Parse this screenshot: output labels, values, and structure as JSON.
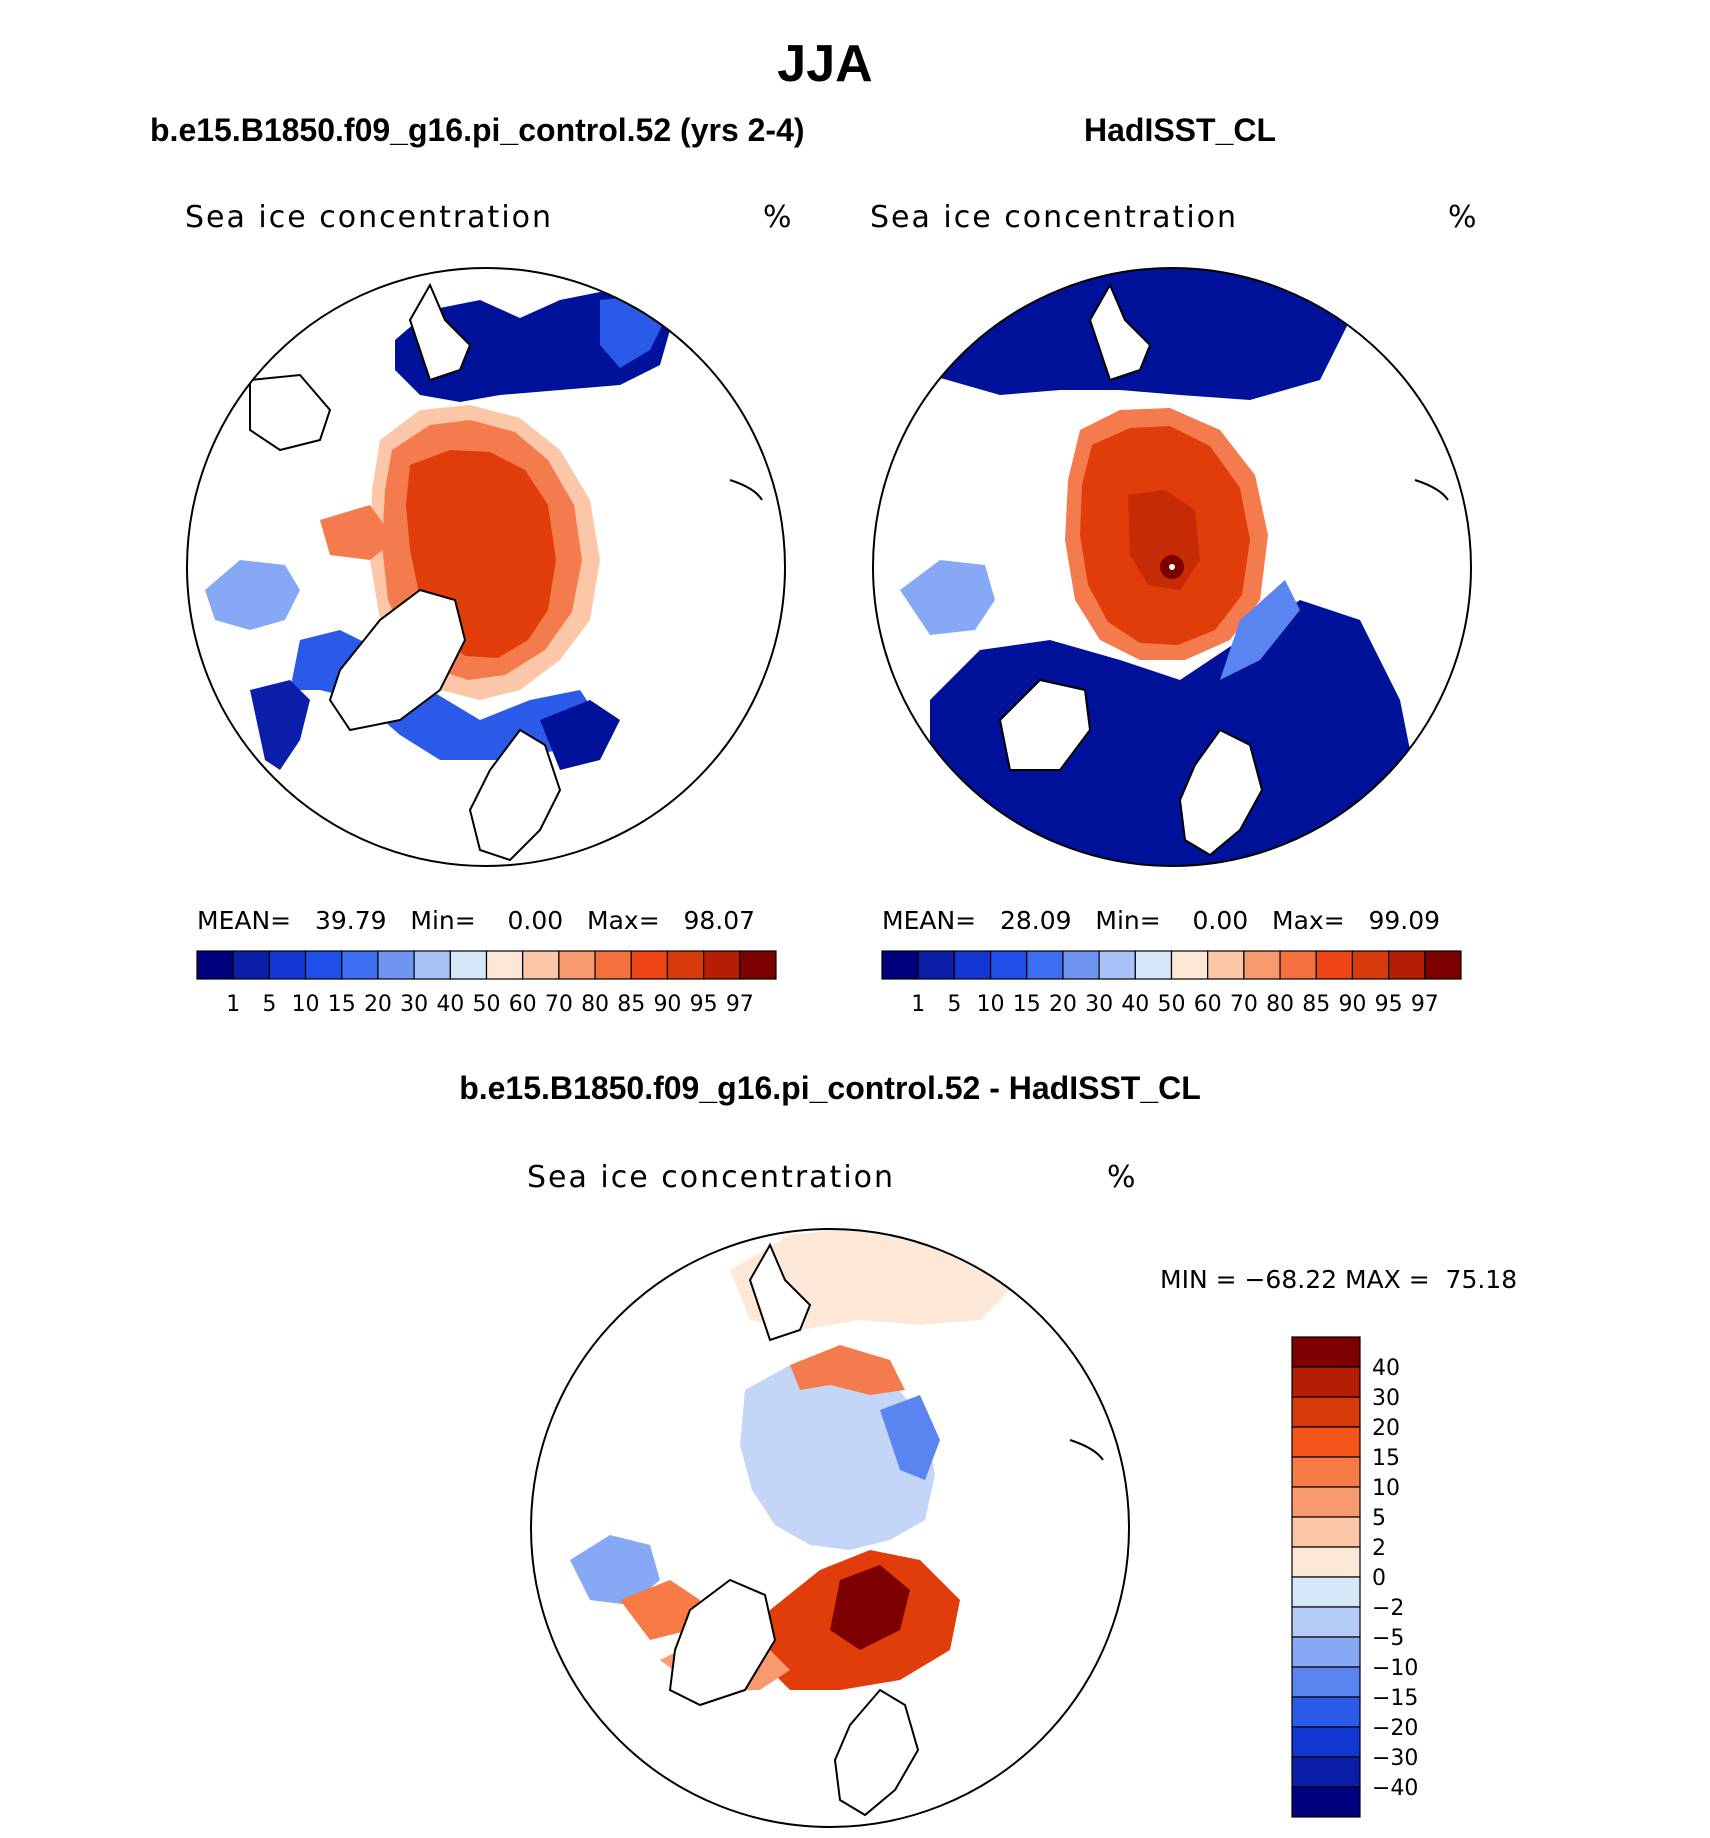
{
  "main_title": "JJA",
  "panels": {
    "left": {
      "title": "b.e15.B1850.f09_g16.pi_control.52 (yrs 2-4)",
      "variable_label": "Sea ice concentration",
      "unit": "%",
      "mean_label": "MEAN=",
      "mean": "39.79",
      "min_label": "Min=",
      "min": "0.00",
      "max_label": "Max=",
      "max": "98.07"
    },
    "right": {
      "title": "HadISST_CL",
      "variable_label": "Sea ice concentration",
      "unit": "%",
      "mean_label": "MEAN=",
      "mean": "28.09",
      "min_label": "Min=",
      "min": "0.00",
      "max_label": "Max=",
      "max": "99.09"
    },
    "diff": {
      "title": "b.e15.B1850.f09_g16.pi_control.52 - HadISST_CL",
      "variable_label": "Sea ice concentration",
      "unit": "%",
      "minmax_text": "MIN = −68.22 MAX =  75.18"
    }
  },
  "colorbar_abs": {
    "labels": [
      "1",
      "5",
      "10",
      "15",
      "20",
      "30",
      "40",
      "50",
      "60",
      "70",
      "80",
      "85",
      "90",
      "95",
      "97"
    ],
    "colors": [
      "#00007f",
      "#0a1ea8",
      "#1236d2",
      "#1f4ee8",
      "#3d6df0",
      "#6f95f0",
      "#a8c2f8",
      "#d7e7fa",
      "#fce6d6",
      "#fbc7a8",
      "#f89a70",
      "#f5703f",
      "#ee4416",
      "#d63a0a",
      "#b51e05",
      "#7d0000"
    ]
  },
  "colorbar_diff": {
    "labels": [
      "40",
      "30",
      "20",
      "15",
      "10",
      "5",
      "2",
      "0",
      "−2",
      "−5",
      "−10",
      "−15",
      "−20",
      "−30",
      "−40"
    ],
    "colors": [
      "#7d0000",
      "#b51e05",
      "#d63a0a",
      "#f5551a",
      "#f87a45",
      "#fa9a70",
      "#fcc7a8",
      "#fde8d8",
      "#d7e7fa",
      "#b3ccf8",
      "#87a8f5",
      "#5a84f0",
      "#2c5ae8",
      "#1236d2",
      "#0a1ea8",
      "#00007f"
    ]
  },
  "map_colors": {
    "land": "#ffffff",
    "deep_blue": "#00119a",
    "ice_core": "#e03d0a",
    "ice_edge": "#f47b4d",
    "dark_red": "#a70c00",
    "diff_blue": "#c4d6f7"
  }
}
